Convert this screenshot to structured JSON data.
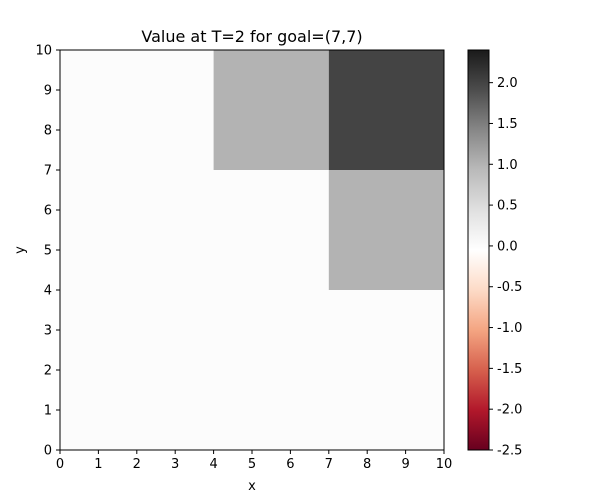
{
  "chart_data": {
    "type": "heatmap",
    "title": "Value at T=2 for goal=(7,7)",
    "xlabel": "x",
    "ylabel": "y",
    "xlim": [
      0,
      10
    ],
    "ylim": [
      0,
      10
    ],
    "xticks": [
      "0",
      "1",
      "2",
      "3",
      "4",
      "5",
      "6",
      "7",
      "8",
      "9",
      "10"
    ],
    "yticks": [
      "0",
      "1",
      "2",
      "3",
      "4",
      "5",
      "6",
      "7",
      "8",
      "9",
      "10"
    ],
    "grid": false,
    "colormap": "RdGy",
    "background_value": 0,
    "regions": [
      {
        "x": [
          4,
          7
        ],
        "y": [
          7,
          10
        ],
        "value": 1
      },
      {
        "x": [
          7,
          10
        ],
        "y": [
          4,
          7
        ],
        "value": 1
      },
      {
        "x": [
          7,
          10
        ],
        "y": [
          7,
          10
        ],
        "value": 2
      }
    ],
    "colorbar": {
      "range": [
        -2.5,
        2.4
      ],
      "ticks": [
        "-2.5",
        "-2.0",
        "-1.5",
        "-1.0",
        "-0.5",
        "0.0",
        "0.5",
        "1.0",
        "1.5",
        "2.0"
      ]
    }
  }
}
